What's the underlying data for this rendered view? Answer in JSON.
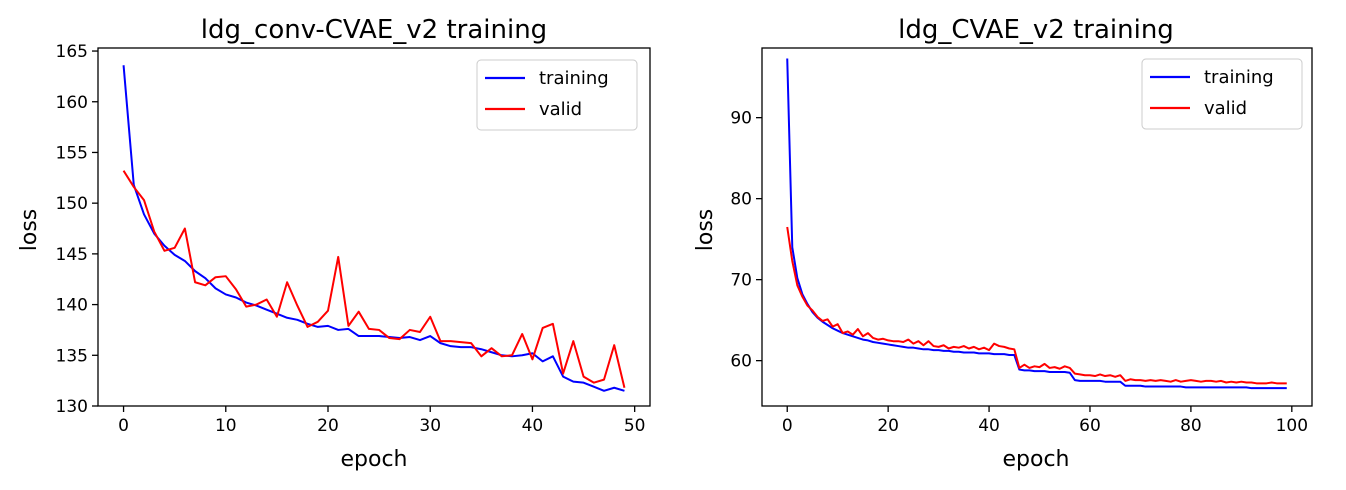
{
  "chart_data": [
    {
      "type": "line",
      "title": "ldg_conv-CVAE_v2 training",
      "xlabel": "epoch",
      "ylabel": "loss",
      "xlim": [
        -2.5,
        51.5
      ],
      "ylim": [
        130,
        165.3
      ],
      "xticks": [
        0,
        10,
        20,
        30,
        40,
        50
      ],
      "yticks": [
        130,
        135,
        140,
        145,
        150,
        155,
        160,
        165
      ],
      "legend": "upper right",
      "grid": false,
      "x": [
        0,
        1,
        2,
        3,
        4,
        5,
        6,
        7,
        8,
        9,
        10,
        11,
        12,
        13,
        14,
        15,
        16,
        17,
        18,
        19,
        20,
        21,
        22,
        23,
        24,
        25,
        26,
        27,
        28,
        29,
        30,
        31,
        32,
        33,
        34,
        35,
        36,
        37,
        38,
        39,
        40,
        41,
        42,
        43,
        44,
        45,
        46,
        47,
        48,
        49
      ],
      "series": [
        {
          "name": "training",
          "color": "#0000ff",
          "values": [
            163.6,
            151.8,
            148.9,
            147.0,
            145.8,
            144.9,
            144.3,
            143.3,
            142.6,
            141.6,
            141.0,
            140.7,
            140.2,
            139.9,
            139.5,
            139.1,
            138.7,
            138.5,
            138.1,
            137.8,
            137.9,
            137.5,
            137.6,
            136.9,
            136.9,
            136.9,
            136.8,
            136.7,
            136.8,
            136.5,
            136.9,
            136.2,
            135.9,
            135.8,
            135.8,
            135.6,
            135.3,
            135.0,
            134.9,
            135.0,
            135.2,
            134.4,
            134.9,
            132.9,
            132.4,
            132.3,
            131.9,
            131.5,
            131.8,
            131.5
          ]
        },
        {
          "name": "valid",
          "color": "#ff0000",
          "values": [
            153.2,
            151.6,
            150.3,
            147.2,
            145.3,
            145.6,
            147.5,
            142.2,
            141.9,
            142.7,
            142.8,
            141.5,
            139.8,
            140.0,
            140.5,
            138.8,
            142.2,
            139.9,
            137.8,
            138.3,
            139.4,
            144.7,
            137.9,
            139.3,
            137.6,
            137.5,
            136.7,
            136.6,
            137.5,
            137.3,
            138.8,
            136.4,
            136.4,
            136.3,
            136.2,
            134.9,
            135.7,
            134.9,
            135.0,
            137.1,
            134.6,
            137.7,
            138.1,
            133.2,
            136.4,
            132.9,
            132.3,
            132.6,
            136.0,
            131.8
          ]
        }
      ]
    },
    {
      "type": "line",
      "title": "ldg_CVAE_v2 training",
      "xlabel": "epoch",
      "ylabel": "loss",
      "xlim": [
        -5,
        104
      ],
      "ylim": [
        54.4,
        98.6
      ],
      "xticks": [
        0,
        20,
        40,
        60,
        80,
        100
      ],
      "yticks": [
        60,
        70,
        80,
        90
      ],
      "legend": "upper right",
      "grid": false,
      "x": [
        0,
        1,
        2,
        3,
        4,
        5,
        6,
        7,
        8,
        9,
        10,
        11,
        12,
        13,
        14,
        15,
        16,
        17,
        18,
        19,
        20,
        21,
        22,
        23,
        24,
        25,
        26,
        27,
        28,
        29,
        30,
        31,
        32,
        33,
        34,
        35,
        36,
        37,
        38,
        39,
        40,
        41,
        42,
        43,
        44,
        45,
        46,
        47,
        48,
        49,
        50,
        51,
        52,
        53,
        54,
        55,
        56,
        57,
        58,
        59,
        60,
        61,
        62,
        63,
        64,
        65,
        66,
        67,
        68,
        69,
        70,
        71,
        72,
        73,
        74,
        75,
        76,
        77,
        78,
        79,
        80,
        81,
        82,
        83,
        84,
        85,
        86,
        87,
        88,
        89,
        90,
        91,
        92,
        93,
        94,
        95,
        96,
        97,
        98,
        99
      ],
      "series": [
        {
          "name": "training",
          "color": "#0000ff",
          "values": [
            97.3,
            74.0,
            70.2,
            68.2,
            67.0,
            66.0,
            65.3,
            64.8,
            64.4,
            64.0,
            63.7,
            63.4,
            63.2,
            63.0,
            62.8,
            62.6,
            62.5,
            62.3,
            62.2,
            62.1,
            62.0,
            61.9,
            61.8,
            61.7,
            61.6,
            61.6,
            61.5,
            61.4,
            61.4,
            61.3,
            61.3,
            61.2,
            61.2,
            61.1,
            61.1,
            61.0,
            61.0,
            61.0,
            60.9,
            60.9,
            60.9,
            60.8,
            60.8,
            60.8,
            60.7,
            60.7,
            58.9,
            58.8,
            58.8,
            58.7,
            58.7,
            58.7,
            58.6,
            58.6,
            58.6,
            58.6,
            58.5,
            57.6,
            57.5,
            57.5,
            57.5,
            57.5,
            57.5,
            57.4,
            57.4,
            57.4,
            57.4,
            56.9,
            56.9,
            56.9,
            56.9,
            56.8,
            56.8,
            56.8,
            56.8,
            56.8,
            56.8,
            56.8,
            56.8,
            56.7,
            56.7,
            56.7,
            56.7,
            56.7,
            56.7,
            56.7,
            56.7,
            56.7,
            56.7,
            56.7,
            56.7,
            56.7,
            56.6,
            56.6,
            56.6,
            56.6,
            56.6,
            56.6,
            56.6,
            56.6
          ]
        },
        {
          "name": "valid",
          "color": "#ff0000",
          "values": [
            76.5,
            72.3,
            69.3,
            67.9,
            66.8,
            66.2,
            65.4,
            64.9,
            65.1,
            64.2,
            64.5,
            63.4,
            63.6,
            63.2,
            63.9,
            63.0,
            63.4,
            62.8,
            62.6,
            62.7,
            62.5,
            62.4,
            62.4,
            62.3,
            62.6,
            62.1,
            62.4,
            61.9,
            62.4,
            61.8,
            61.7,
            61.9,
            61.5,
            61.7,
            61.6,
            61.8,
            61.5,
            61.7,
            61.4,
            61.6,
            61.3,
            62.1,
            61.8,
            61.7,
            61.5,
            61.4,
            59.1,
            59.5,
            59.1,
            59.3,
            59.2,
            59.6,
            59.1,
            59.2,
            59.0,
            59.3,
            59.1,
            58.4,
            58.3,
            58.2,
            58.2,
            58.1,
            58.3,
            58.1,
            58.2,
            58.0,
            58.2,
            57.5,
            57.7,
            57.6,
            57.6,
            57.5,
            57.6,
            57.5,
            57.6,
            57.5,
            57.4,
            57.6,
            57.4,
            57.5,
            57.6,
            57.5,
            57.4,
            57.5,
            57.5,
            57.4,
            57.5,
            57.3,
            57.4,
            57.3,
            57.4,
            57.3,
            57.3,
            57.2,
            57.2,
            57.2,
            57.3,
            57.2,
            57.2,
            57.2
          ]
        }
      ]
    }
  ]
}
